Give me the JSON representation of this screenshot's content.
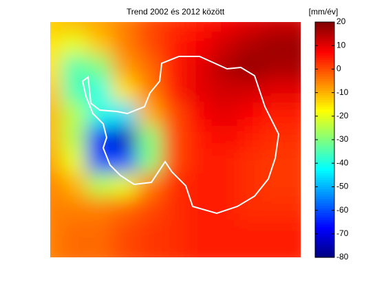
{
  "chart_data": {
    "type": "heatmap",
    "title": "Trend 2002 és 2012 között",
    "colorbar_label": "[mm/év]",
    "colormap": "jet",
    "clim": [
      -80,
      20
    ],
    "colorbar_ticks": [
      20,
      10,
      0,
      -10,
      -20,
      -30,
      -40,
      -50,
      -60,
      -70,
      -80
    ],
    "z": [
      [
        -12,
        -10,
        -8,
        -5,
        0,
        3,
        5,
        8,
        10,
        12
      ],
      [
        -15,
        -20,
        -12,
        -5,
        0,
        5,
        8,
        12,
        15,
        17
      ],
      [
        -15,
        -35,
        -30,
        -8,
        -3,
        5,
        10,
        15,
        18,
        16
      ],
      [
        -12,
        -35,
        -40,
        -15,
        -5,
        5,
        10,
        12,
        12,
        10
      ],
      [
        -10,
        -25,
        -40,
        -45,
        -10,
        0,
        8,
        10,
        8,
        5
      ],
      [
        -10,
        -25,
        -65,
        -75,
        -30,
        0,
        5,
        8,
        5,
        3
      ],
      [
        -8,
        -20,
        -60,
        -60,
        -30,
        0,
        5,
        5,
        3,
        2
      ],
      [
        -5,
        -10,
        -25,
        -20,
        -5,
        3,
        5,
        5,
        3,
        2
      ],
      [
        -5,
        -5,
        -5,
        -3,
        0,
        3,
        5,
        5,
        3,
        3
      ],
      [
        -5,
        -3,
        -3,
        0,
        2,
        3,
        5,
        5,
        5,
        5
      ]
    ]
  }
}
